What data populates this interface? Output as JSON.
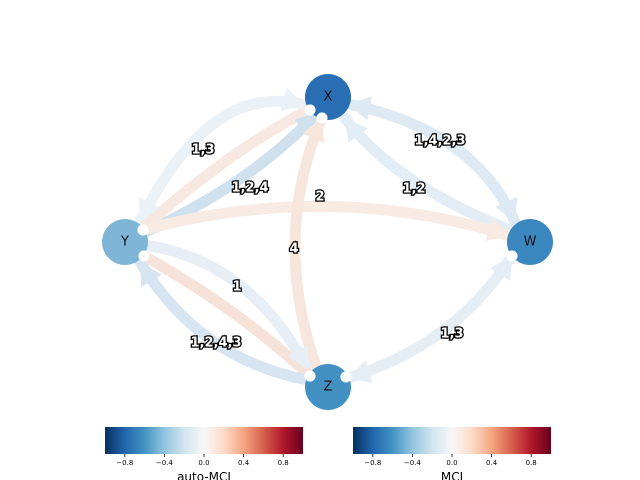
{
  "nodes": [
    {
      "id": "X",
      "label": "X",
      "color": "#2a6fb3"
    },
    {
      "id": "Y",
      "label": "Y",
      "color": "#7fb5d6"
    },
    {
      "id": "W",
      "label": "W",
      "color": "#3b87c0"
    },
    {
      "id": "Z",
      "label": "Z",
      "color": "#4391c3"
    }
  ],
  "edges": [
    {
      "id": "y-x-outer",
      "from": "Y",
      "to": "X",
      "label": "1,3",
      "color": "#eaf1f7",
      "arrow": "both"
    },
    {
      "id": "y-x-inner",
      "from": "Y",
      "to": "X",
      "label": "1,2,4",
      "color": "#cfe1ef",
      "arrow": "to"
    },
    {
      "id": "y-x-mid",
      "from": "Y",
      "to": "X",
      "label": "",
      "color": "#f7e9e1",
      "arrow": "none"
    },
    {
      "id": "x-w",
      "from": "X",
      "to": "W",
      "label": "1,4,2,3",
      "color": "#dde9f3",
      "arrow": "both"
    },
    {
      "id": "w-x",
      "from": "W",
      "to": "X",
      "label": "1,2",
      "color": "#e3edf5",
      "arrow": "to"
    },
    {
      "id": "y-w",
      "from": "Y",
      "to": "W",
      "label": "2",
      "color": "#f8ebe4",
      "arrow": "to"
    },
    {
      "id": "z-x",
      "from": "Z",
      "to": "X",
      "label": "4",
      "color": "#f6e6dc",
      "arrow": "to"
    },
    {
      "id": "y-z-inner",
      "from": "Y",
      "to": "Z",
      "label": "1",
      "color": "#e7eef5",
      "arrow": "to"
    },
    {
      "id": "y-z-mid",
      "from": "Y",
      "to": "Z",
      "label": "",
      "color": "#f6e2d8",
      "arrow": "none"
    },
    {
      "id": "z-y-outer",
      "from": "Z",
      "to": "Y",
      "label": "1,2,4,3",
      "color": "#d6e5f1",
      "arrow": "to"
    },
    {
      "id": "w-z",
      "from": "W",
      "to": "Z",
      "label": "1,3",
      "color": "#e6eef5",
      "arrow": "both"
    }
  ],
  "colorbars": [
    {
      "title": "auto-MCI",
      "ticks": [
        "−0.8",
        "−0.4",
        "0.0",
        "0.4",
        "0.8"
      ],
      "range": [
        -1,
        1
      ]
    },
    {
      "title": "MCI",
      "ticks": [
        "−0.8",
        "−0.4",
        "0.0",
        "0.4",
        "0.8"
      ],
      "range": [
        -1,
        1
      ]
    }
  ],
  "colormap": [
    "#053061",
    "#2166ac",
    "#4393c3",
    "#92c5de",
    "#d1e5f0",
    "#f7f7f7",
    "#fddbc7",
    "#f4a582",
    "#d6604d",
    "#b2182b",
    "#67001f"
  ]
}
